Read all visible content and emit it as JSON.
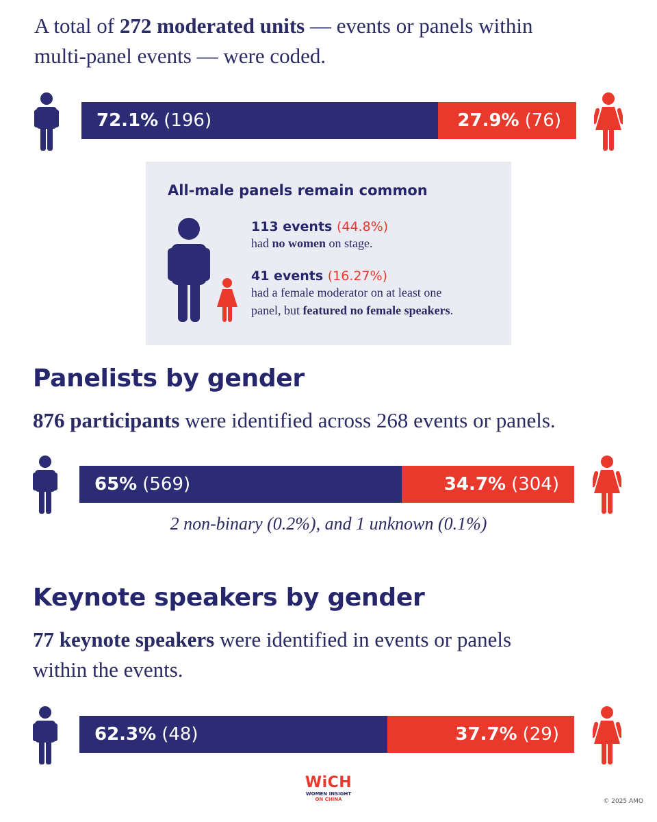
{
  "intro": {
    "pre": "A total of ",
    "bold": "272 moderated units",
    "post1": " — events or panels within",
    "line2": "multi-panel events — were coded."
  },
  "colors": {
    "male": "#2b2c73",
    "female": "#e8392c",
    "box_bg": "#ebebf4"
  },
  "icons": {
    "male": "male-figure-icon",
    "female": "female-figure-icon"
  },
  "chart_data": [
    {
      "type": "bar",
      "stacked": true,
      "categories": [
        "Moderated units"
      ],
      "series": [
        {
          "name": "",
          "values": [
            72.1
          ],
          "count": "(196)",
          "label": "72.1%"
        },
        {
          "name": "",
          "values": [
            27.9
          ],
          "count": "(76)",
          "label": "27.9%"
        }
      ]
    },
    {
      "type": "bar",
      "stacked": true,
      "categories": [
        "Panelists"
      ],
      "series": [
        {
          "name": "",
          "values": [
            65
          ],
          "count": "(569)",
          "label": "65%"
        },
        {
          "name": "",
          "values": [
            34.7
          ],
          "count": "(304)",
          "label": "34.7%"
        }
      ]
    },
    {
      "type": "bar",
      "stacked": true,
      "categories": [
        "Keynote speakers"
      ],
      "series": [
        {
          "name": "",
          "values": [
            62.3
          ],
          "count": "(48)",
          "label": "62.3%"
        },
        {
          "name": "",
          "values": [
            37.7
          ],
          "count": "(29)",
          "label": "37.7%"
        }
      ]
    }
  ],
  "box": {
    "title": "All-male panels remain common",
    "stat1_head": "113 events",
    "stat1_pct": "(44.8%)",
    "stat1_pre": "had ",
    "stat1_bold": "no women",
    "stat1_post": " on stage.",
    "stat2_head": "41 events",
    "stat2_pct": "(16.27%)",
    "stat2_line1": "had a female moderator on at least one",
    "stat2_pre": "panel, but ",
    "stat2_bold": "featured no female speakers",
    "stat2_post": "."
  },
  "panelists": {
    "title": "Panelists by gender",
    "bold": "876 participants",
    "rest": " were identified across 268 events or panels.",
    "note": "2 non-binary (0.2%), and 1 unknown (0.1%)"
  },
  "keynote": {
    "title": "Keynote speakers by gender",
    "bold": "77 keynote speakers",
    "rest": " were identified in events or panels",
    "line2": "within the events."
  },
  "footer": {
    "logo": "WiCH",
    "logo_sub1": "WOMEN INSIGHT",
    "logo_sub2": "ON CHINA",
    "copyright": "© 2025 AMO"
  }
}
